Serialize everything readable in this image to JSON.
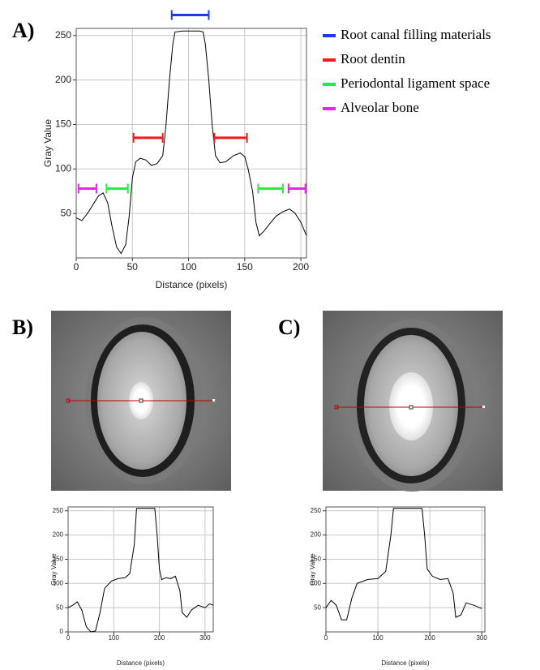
{
  "chart_data": [
    {
      "type": "line",
      "label": "A)",
      "x_label": "Distance (pixels)",
      "y_label": "Gray Value",
      "color": "#000000",
      "x": [
        0,
        5,
        10,
        15,
        20,
        24,
        28,
        32,
        36,
        40,
        44,
        47,
        50,
        53,
        57,
        62,
        67,
        72,
        77,
        80,
        83,
        86,
        88,
        95,
        110,
        113,
        115,
        118,
        121,
        124,
        128,
        133,
        140,
        146,
        150,
        153,
        157,
        160,
        163,
        167,
        172,
        178,
        184,
        190,
        195,
        200,
        205
      ],
      "values": [
        45,
        42,
        50,
        60,
        70,
        73,
        62,
        35,
        12,
        5,
        15,
        45,
        90,
        108,
        112,
        110,
        104,
        106,
        115,
        150,
        200,
        240,
        254,
        255,
        255,
        254,
        240,
        200,
        150,
        115,
        107,
        108,
        115,
        118,
        114,
        100,
        75,
        40,
        25,
        30,
        38,
        47,
        52,
        55,
        50,
        40,
        25
      ],
      "xlim": [
        0,
        205
      ],
      "ylim": [
        0,
        258
      ],
      "xticks": [
        0,
        50,
        100,
        150,
        200
      ],
      "yticks": [
        50,
        100,
        150,
        200,
        250
      ],
      "grid": true,
      "ranges": [
        {
          "name": "Root canal filling materials",
          "color": "#1a3cf0",
          "segments": [
            {
              "x": [
                85,
                118
              ],
              "y": 273
            }
          ]
        },
        {
          "name": "Root dentin",
          "color": "#ee1c1c",
          "segments": [
            {
              "x": [
                51,
                77
              ],
              "y": 135
            },
            {
              "x": [
                123,
                152
              ],
              "y": 135
            }
          ]
        },
        {
          "name": "Periodontal ligament space",
          "color": "#22ee44",
          "segments": [
            {
              "x": [
                27,
                46
              ],
              "y": 78
            },
            {
              "x": [
                162,
                184
              ],
              "y": 78
            }
          ]
        },
        {
          "name": "Alveolar bone",
          "color": "#ee22ee",
          "segments": [
            {
              "x": [
                2,
                18
              ],
              "y": 78
            },
            {
              "x": [
                189,
                204
              ],
              "y": 78
            }
          ]
        }
      ]
    },
    {
      "type": "line",
      "label": "B)",
      "x_label": "Distance (pixels)",
      "y_label": "Gray Value",
      "color": "#000000",
      "x": [
        0,
        10,
        20,
        30,
        40,
        50,
        60,
        70,
        80,
        95,
        110,
        125,
        135,
        145,
        150,
        190,
        195,
        200,
        205,
        215,
        225,
        235,
        245,
        250,
        260,
        270,
        285,
        300,
        310,
        318
      ],
      "values": [
        50,
        55,
        62,
        45,
        10,
        0,
        2,
        40,
        90,
        105,
        110,
        112,
        120,
        180,
        255,
        255,
        200,
        130,
        108,
        112,
        110,
        115,
        85,
        40,
        30,
        45,
        55,
        50,
        58,
        55
      ],
      "xlim": [
        0,
        318
      ],
      "ylim": [
        0,
        258
      ],
      "xticks": [
        0,
        100,
        200,
        300
      ],
      "yticks": [
        0,
        50,
        100,
        150,
        200,
        250
      ],
      "grid": true
    },
    {
      "type": "line",
      "label": "C)",
      "x_label": "Distance (pixels)",
      "y_label": "Gray Value",
      "color": "#000000",
      "x": [
        0,
        10,
        20,
        30,
        40,
        50,
        60,
        80,
        100,
        115,
        125,
        130,
        185,
        190,
        195,
        205,
        220,
        235,
        245,
        250,
        260,
        270,
        285,
        300
      ],
      "values": [
        50,
        65,
        55,
        25,
        25,
        70,
        100,
        108,
        110,
        125,
        200,
        255,
        255,
        200,
        130,
        115,
        108,
        110,
        80,
        30,
        35,
        60,
        55,
        48
      ],
      "xlim": [
        0,
        306
      ],
      "ylim": [
        0,
        258
      ],
      "xticks": [
        0,
        100,
        200,
        300
      ],
      "yticks": [
        50,
        100,
        150,
        200,
        250
      ],
      "grid": true
    }
  ]
}
